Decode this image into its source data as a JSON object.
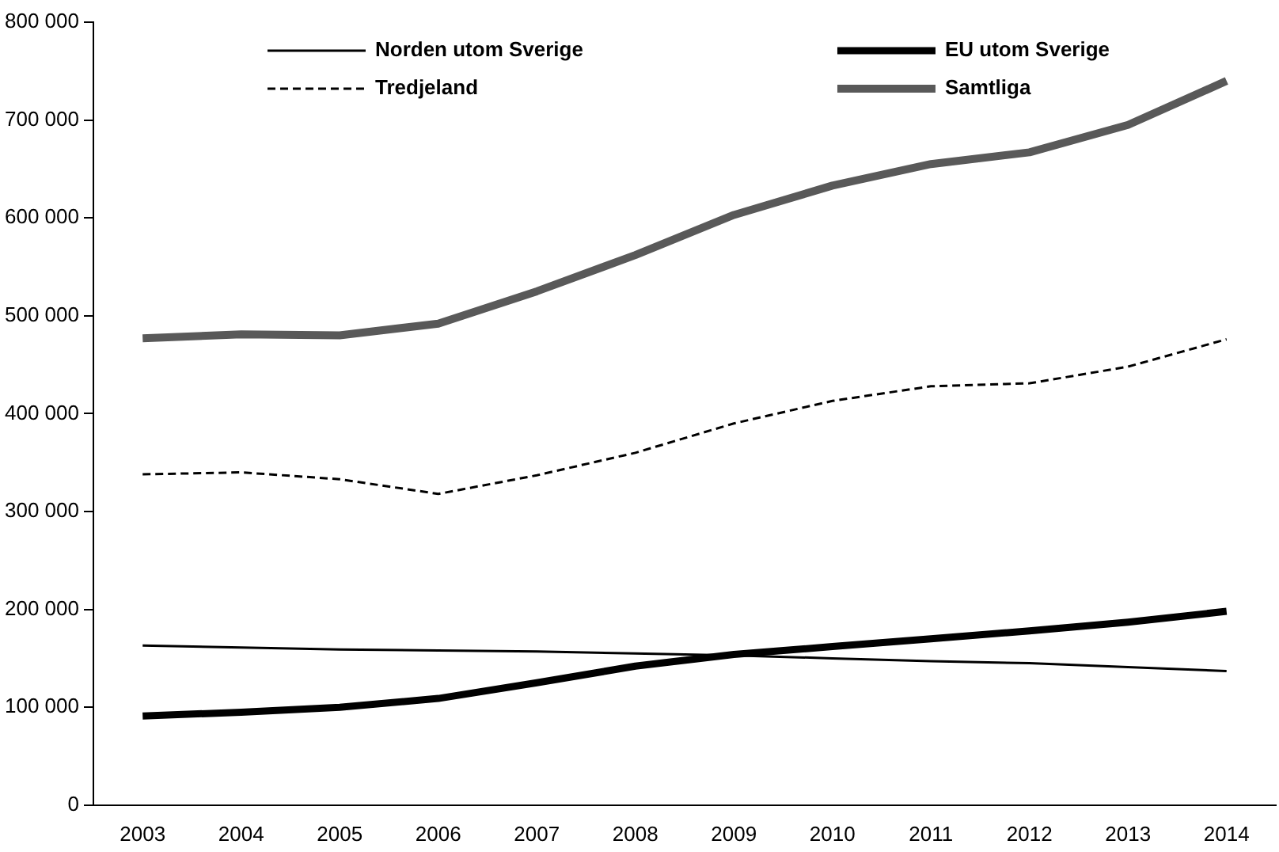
{
  "chart_data": {
    "type": "line",
    "categories": [
      "2003",
      "2004",
      "2005",
      "2006",
      "2007",
      "2008",
      "2009",
      "2010",
      "2011",
      "2012",
      "2013",
      "2014"
    ],
    "series": [
      {
        "name": "Norden utom Sverige",
        "color": "#000000",
        "line_style": "solid",
        "values": [
          163000,
          161000,
          159000,
          158000,
          157000,
          155000,
          153000,
          150000,
          147000,
          145000,
          141000,
          137000
        ]
      },
      {
        "name": "EU utom Sverige",
        "color": "#000000",
        "line_style": "solid",
        "values": [
          91000,
          95000,
          100000,
          109000,
          125000,
          142000,
          154000,
          162000,
          170000,
          178000,
          187000,
          198000
        ]
      },
      {
        "name": "Tredjeland",
        "color": "#000000",
        "line_style": "dashed",
        "values": [
          338000,
          340000,
          333000,
          318000,
          337000,
          360000,
          390000,
          413000,
          428000,
          431000,
          448000,
          476000
        ]
      },
      {
        "name": "Samtliga",
        "color": "#595959",
        "line_style": "solid",
        "values": [
          477000,
          481000,
          480000,
          492000,
          525000,
          562000,
          603000,
          633000,
          655000,
          667000,
          695000,
          740000
        ]
      }
    ],
    "ylim": [
      0,
      800000
    ],
    "yticks": [
      {
        "value": 0,
        "label": "0"
      },
      {
        "value": 100000,
        "label": "100 000"
      },
      {
        "value": 200000,
        "label": "200 000"
      },
      {
        "value": 300000,
        "label": "300 000"
      },
      {
        "value": 400000,
        "label": "400 000"
      },
      {
        "value": 500000,
        "label": "500 000"
      },
      {
        "value": 600000,
        "label": "600 000"
      },
      {
        "value": 700000,
        "label": "700 000"
      },
      {
        "value": 800000,
        "label": "800 000"
      }
    ],
    "grid": false,
    "legend": "top",
    "marker": "none"
  }
}
